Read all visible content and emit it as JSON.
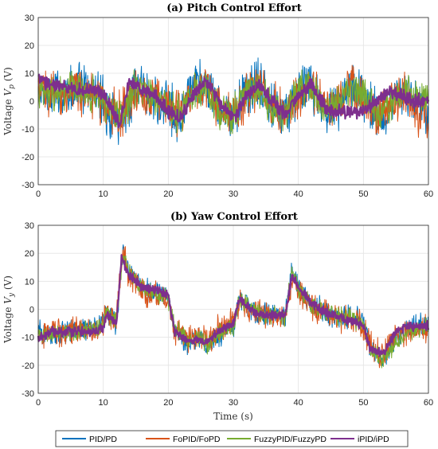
{
  "chart_data": [
    {
      "type": "line",
      "title": "(a) Pitch Control Effort",
      "ylabel": "Voltage V_p (V)",
      "xlabel": "",
      "xlim": [
        0,
        60
      ],
      "ylim": [
        -30,
        30
      ],
      "xticks": [
        0,
        10,
        20,
        30,
        40,
        50,
        60
      ],
      "yticks": [
        -30,
        -20,
        -10,
        0,
        10,
        20,
        30
      ],
      "grid": true,
      "saturation": 24,
      "series": [
        {
          "name": "PID/PD",
          "color": "#0072BD",
          "amplitude": 11,
          "centerline": [
            [
              0,
              2
            ],
            [
              3,
              3
            ],
            [
              6,
              5
            ],
            [
              9,
              3
            ],
            [
              10,
              0
            ],
            [
              11,
              -4
            ],
            [
              13,
              -6
            ],
            [
              15,
              6
            ],
            [
              17,
              3
            ],
            [
              20,
              -3
            ],
            [
              22,
              -5
            ],
            [
              24,
              5
            ],
            [
              26,
              6
            ],
            [
              28,
              -5
            ],
            [
              30,
              -6
            ],
            [
              32,
              4
            ],
            [
              34,
              6
            ],
            [
              36,
              -3
            ],
            [
              38,
              -5
            ],
            [
              40,
              4
            ],
            [
              42,
              5
            ],
            [
              44,
              -3
            ],
            [
              46,
              -2
            ],
            [
              48,
              5
            ],
            [
              50,
              3
            ],
            [
              52,
              -5
            ],
            [
              54,
              -3
            ],
            [
              56,
              4
            ],
            [
              58,
              -2
            ],
            [
              60,
              -2
            ]
          ]
        },
        {
          "name": "FoPID/FoPD",
          "color": "#D95319",
          "amplitude": 10,
          "centerline": [
            [
              0,
              4
            ],
            [
              3,
              2
            ],
            [
              6,
              4
            ],
            [
              9,
              2
            ],
            [
              10,
              0
            ],
            [
              11,
              -3
            ],
            [
              13,
              -5
            ],
            [
              15,
              5
            ],
            [
              17,
              3
            ],
            [
              20,
              -2
            ],
            [
              22,
              -4
            ],
            [
              24,
              4
            ],
            [
              26,
              5
            ],
            [
              28,
              -4
            ],
            [
              30,
              -5
            ],
            [
              32,
              3
            ],
            [
              34,
              5
            ],
            [
              36,
              -2
            ],
            [
              38,
              -4
            ],
            [
              40,
              3
            ],
            [
              42,
              5
            ],
            [
              44,
              -2
            ],
            [
              46,
              -2
            ],
            [
              48,
              4
            ],
            [
              50,
              2
            ],
            [
              52,
              -5
            ],
            [
              54,
              -2
            ],
            [
              56,
              3
            ],
            [
              58,
              -4
            ],
            [
              60,
              -6
            ]
          ]
        },
        {
          "name": "FuzzyPID/FuzzyPD",
          "color": "#77AC30",
          "amplitude": 8,
          "centerline": [
            [
              0,
              3
            ],
            [
              3,
              3
            ],
            [
              6,
              4
            ],
            [
              9,
              2
            ],
            [
              10,
              0
            ],
            [
              11,
              -3
            ],
            [
              13,
              -5
            ],
            [
              15,
              5
            ],
            [
              17,
              3
            ],
            [
              20,
              -3
            ],
            [
              22,
              -4
            ],
            [
              24,
              4
            ],
            [
              26,
              5
            ],
            [
              28,
              -4
            ],
            [
              30,
              -5
            ],
            [
              32,
              4
            ],
            [
              34,
              5
            ],
            [
              36,
              -3
            ],
            [
              38,
              -4
            ],
            [
              40,
              4
            ],
            [
              42,
              5
            ],
            [
              44,
              -3
            ],
            [
              46,
              -2
            ],
            [
              48,
              4
            ],
            [
              50,
              3
            ],
            [
              52,
              -4
            ],
            [
              54,
              -2
            ],
            [
              56,
              4
            ],
            [
              58,
              2
            ],
            [
              60,
              0
            ]
          ]
        },
        {
          "name": "iPID/iPD",
          "color": "#7E2F8E",
          "amplitude": 3,
          "centerline": [
            [
              0,
              8
            ],
            [
              2,
              6
            ],
            [
              4,
              5
            ],
            [
              6,
              4
            ],
            [
              8,
              4
            ],
            [
              10,
              3
            ],
            [
              11,
              -2
            ],
            [
              12.5,
              -8
            ],
            [
              14,
              7
            ],
            [
              16,
              4
            ],
            [
              18,
              2
            ],
            [
              20,
              -4
            ],
            [
              22,
              -6
            ],
            [
              24,
              3
            ],
            [
              26,
              7
            ],
            [
              28,
              -1
            ],
            [
              30,
              -6
            ],
            [
              32,
              2
            ],
            [
              34,
              6
            ],
            [
              36,
              0
            ],
            [
              38,
              -5
            ],
            [
              40,
              2
            ],
            [
              42,
              6
            ],
            [
              44,
              -2
            ],
            [
              46,
              -4
            ],
            [
              48,
              -4
            ],
            [
              50,
              -4
            ],
            [
              52,
              0
            ],
            [
              54,
              4
            ],
            [
              56,
              2
            ],
            [
              58,
              0
            ],
            [
              60,
              0
            ]
          ]
        }
      ]
    },
    {
      "type": "line",
      "title": "(b) Yaw Control Effort",
      "ylabel": "Voltage V_y (V)",
      "xlabel": "Time (s)",
      "xlim": [
        0,
        60
      ],
      "ylim": [
        -30,
        30
      ],
      "xticks": [
        0,
        10,
        20,
        30,
        40,
        50,
        60
      ],
      "yticks": [
        -30,
        -20,
        -10,
        0,
        10,
        20,
        30
      ],
      "grid": true,
      "saturation": 24,
      "series": [
        {
          "name": "PID/PD",
          "color": "#0072BD",
          "amplitude": 5,
          "centerline": [
            [
              0,
              -8
            ],
            [
              3,
              -9
            ],
            [
              6,
              -7
            ],
            [
              9,
              -6
            ],
            [
              10,
              -4
            ],
            [
              10.5,
              -1
            ],
            [
              12,
              -5
            ],
            [
              13,
              20
            ],
            [
              14,
              14
            ],
            [
              16,
              8
            ],
            [
              18,
              6
            ],
            [
              20,
              4
            ],
            [
              21,
              -8
            ],
            [
              23,
              -12
            ],
            [
              25,
              -10
            ],
            [
              26,
              -14
            ],
            [
              28,
              -9
            ],
            [
              30,
              -6
            ],
            [
              31,
              4
            ],
            [
              33,
              0
            ],
            [
              35,
              -2
            ],
            [
              38,
              -2
            ],
            [
              39,
              14
            ],
            [
              40,
              8
            ],
            [
              42,
              2
            ],
            [
              45,
              -2
            ],
            [
              48,
              -3
            ],
            [
              50,
              -4
            ],
            [
              51,
              -14
            ],
            [
              53,
              -18
            ],
            [
              55,
              -10
            ],
            [
              57,
              -6
            ],
            [
              60,
              -5
            ]
          ]
        },
        {
          "name": "FoPID/FoPD",
          "color": "#D95319",
          "amplitude": 6,
          "centerline": [
            [
              0,
              -9
            ],
            [
              3,
              -8
            ],
            [
              6,
              -7
            ],
            [
              9,
              -8
            ],
            [
              10,
              -5
            ],
            [
              10.5,
              -1
            ],
            [
              12,
              -4
            ],
            [
              13,
              21
            ],
            [
              14,
              12
            ],
            [
              16,
              7
            ],
            [
              18,
              5
            ],
            [
              20,
              3
            ],
            [
              21,
              -7
            ],
            [
              23,
              -11
            ],
            [
              25,
              -10
            ],
            [
              26,
              -12
            ],
            [
              28,
              -6
            ],
            [
              30,
              -5
            ],
            [
              31,
              3
            ],
            [
              33,
              -1
            ],
            [
              35,
              -2
            ],
            [
              38,
              -3
            ],
            [
              39,
              12
            ],
            [
              40,
              6
            ],
            [
              42,
              1
            ],
            [
              45,
              -2
            ],
            [
              48,
              -4
            ],
            [
              50,
              -6
            ],
            [
              51,
              -13
            ],
            [
              53,
              -16
            ],
            [
              55,
              -9
            ],
            [
              57,
              -7
            ],
            [
              60,
              -7
            ]
          ]
        },
        {
          "name": "FuzzyPID/FuzzyPD",
          "color": "#77AC30",
          "amplitude": 4,
          "centerline": [
            [
              0,
              -9
            ],
            [
              3,
              -9
            ],
            [
              6,
              -8
            ],
            [
              9,
              -7
            ],
            [
              10,
              -5
            ],
            [
              10.5,
              -1
            ],
            [
              12,
              -4
            ],
            [
              13,
              20
            ],
            [
              14,
              13
            ],
            [
              16,
              8
            ],
            [
              18,
              6
            ],
            [
              20,
              4
            ],
            [
              21,
              -7
            ],
            [
              23,
              -11
            ],
            [
              25,
              -10
            ],
            [
              26,
              -13
            ],
            [
              28,
              -8
            ],
            [
              30,
              -6
            ],
            [
              31,
              4
            ],
            [
              33,
              0
            ],
            [
              35,
              -2
            ],
            [
              38,
              -3
            ],
            [
              39,
              13
            ],
            [
              40,
              7
            ],
            [
              42,
              2
            ],
            [
              45,
              -2
            ],
            [
              48,
              -3
            ],
            [
              50,
              -5
            ],
            [
              51,
              -15
            ],
            [
              53,
              -18
            ],
            [
              55,
              -12
            ],
            [
              57,
              -8
            ],
            [
              60,
              -6
            ]
          ]
        },
        {
          "name": "iPID/iPD",
          "color": "#7E2F8E",
          "amplitude": 2,
          "centerline": [
            [
              0,
              -10
            ],
            [
              2,
              -8
            ],
            [
              4,
              -8
            ],
            [
              6,
              -8
            ],
            [
              8,
              -8
            ],
            [
              10,
              -7
            ],
            [
              10.5,
              -2
            ],
            [
              12,
              -5
            ],
            [
              12.8,
              18
            ],
            [
              14,
              12
            ],
            [
              16,
              8
            ],
            [
              18,
              7
            ],
            [
              20,
              5
            ],
            [
              21,
              -8
            ],
            [
              23,
              -11
            ],
            [
              25,
              -11
            ],
            [
              26,
              -12
            ],
            [
              28,
              -7
            ],
            [
              30,
              -5
            ],
            [
              31,
              4
            ],
            [
              33,
              -1
            ],
            [
              35,
              -2
            ],
            [
              38,
              -2
            ],
            [
              39,
              12
            ],
            [
              40,
              8
            ],
            [
              42,
              2
            ],
            [
              45,
              -2
            ],
            [
              48,
              -4
            ],
            [
              50,
              -6
            ],
            [
              51,
              -14
            ],
            [
              53,
              -16
            ],
            [
              55,
              -8
            ],
            [
              57,
              -6
            ],
            [
              60,
              -6
            ]
          ]
        }
      ]
    }
  ],
  "legend": [
    {
      "label": "PID/PD",
      "color": "#0072BD"
    },
    {
      "label": "FoPID/FoPD",
      "color": "#D95319"
    },
    {
      "label": "FuzzyPID/FuzzyPD",
      "color": "#77AC30"
    },
    {
      "label": "iPID/iPD",
      "color": "#7E2F8E"
    }
  ]
}
